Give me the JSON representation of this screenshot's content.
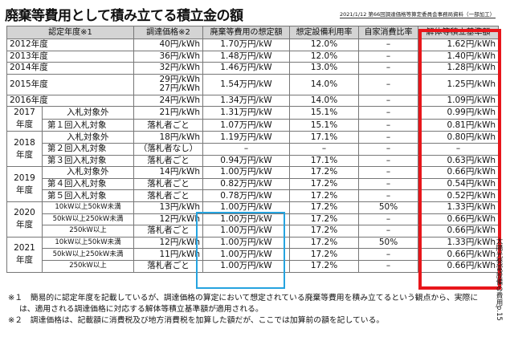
{
  "title": "廃棄等費用として積み立てる積立金の額",
  "source": "2021/1/12 第66回調達価格等算定委員会事務局資料（一部加工）",
  "headers": [
    "認定年度※1",
    "調達価格※2",
    "廃棄等費用の想定額",
    "想定設備利用率",
    "自家消費比率",
    "解体等積立基準額"
  ],
  "years": {
    "y2017": "2017年度",
    "y2018": "2018年度",
    "y2019": "2019年度",
    "y2020": "2020年度",
    "y2021": "2021年度"
  },
  "rows": [
    {
      "label": "2012年度",
      "price": "40円/kWh",
      "cost": "1.70万円/kW",
      "rate": "12.0%",
      "self": "–",
      "std": "1.62円/kWh"
    },
    {
      "label": "2013年度",
      "price": "36円/kWh",
      "cost": "1.48万円/kW",
      "rate": "12.0%",
      "self": "–",
      "std": "1.40円/kWh"
    },
    {
      "label": "2014年度",
      "price": "32円/kWh",
      "cost": "1.46万円/kW",
      "rate": "13.0%",
      "self": "–",
      "std": "1.28円/kWh"
    },
    {
      "label": "2015年度",
      "price": "29円/kWh",
      "price2": "27円/kWh",
      "cost": "1.54万円/kW",
      "rate": "14.0%",
      "self": "–",
      "std": "1.25円/kWh"
    },
    {
      "label": "2016年度",
      "price": "24円/kWh",
      "cost": "1.34万円/kW",
      "rate": "14.0%",
      "self": "–",
      "std": "1.09円/kWh"
    },
    {
      "label": "入札対象外",
      "price": "21円/kWh",
      "cost": "1.31万円/kW",
      "rate": "15.1%",
      "self": "–",
      "std": "0.99円/kWh"
    },
    {
      "label": "第１回入札対象",
      "price": "落札者ごと",
      "cost": "1.07万円/kW",
      "rate": "15.1%",
      "self": "–",
      "std": "0.81円/kWh"
    },
    {
      "label": "入札対象外",
      "price": "18円/kWh",
      "cost": "1.19万円/kW",
      "rate": "17.1%",
      "self": "–",
      "std": "0.80円/kWh"
    },
    {
      "label": "第２回入札対象",
      "price": "（落札者なし）",
      "cost": "–",
      "rate": "–",
      "self": "–",
      "std": "–"
    },
    {
      "label": "第３回入札対象",
      "price": "落札者ごと",
      "cost": "0.94万円/kW",
      "rate": "17.1%",
      "self": "–",
      "std": "0.63円/kWh"
    },
    {
      "label": "入札対象外",
      "price": "14円/kWh",
      "cost": "1.00万円/kW",
      "rate": "17.2%",
      "self": "–",
      "std": "0.66円/kWh"
    },
    {
      "label": "第４回入札対象",
      "price": "落札者ごと",
      "cost": "0.82万円/kW",
      "rate": "17.2%",
      "self": "–",
      "std": "0.54円/kWh"
    },
    {
      "label": "第５回入札対象",
      "price": "落札者ごと",
      "cost": "0.78万円/kW",
      "rate": "17.2%",
      "self": "–",
      "std": "0.52円/kWh"
    },
    {
      "label": "10kW以上50kW未満",
      "price": "13円/kWh",
      "cost": "1.00万円/kW",
      "rate": "17.2%",
      "self": "50%",
      "std": "1.33円/kWh"
    },
    {
      "label": "50kW以上250kW未満",
      "price": "12円/kWh",
      "cost": "1.00万円/kW",
      "rate": "17.2%",
      "self": "–",
      "std": "0.66円/kWh"
    },
    {
      "label": "250kW以上",
      "price": "落札者ごと",
      "cost": "1.00万円/kW",
      "rate": "17.2%",
      "self": "–",
      "std": "0.66円/kWh"
    },
    {
      "label": "10kW以上50kW未満",
      "price": "12円/kWh",
      "cost": "1.00万円/kW",
      "rate": "17.2%",
      "self": "50%",
      "std": "1.33円/kWh"
    },
    {
      "label": "50kW以上250kW未満",
      "price": "11円/kWh",
      "cost": "1.00万円/kW",
      "rate": "17.2%",
      "self": "–",
      "std": "0.66円/kWh"
    },
    {
      "label": "250kW以上",
      "price": "落札者ごと",
      "cost": "1.00万円/kW",
      "rate": "17.2%",
      "self": "–",
      "std": "0.66円/kWh"
    }
  ],
  "footnotes": [
    "※１　簡易的に認定年度を記載しているが、調達価格の算定において想定されている廃棄等費用を積み立てるという観点から、実際に",
    "は、適用される調達価格に対応する解体等積立基準額が適用される。",
    "※２　調達価格は、記載額に消費税及び地方消費税を加算した額だが、ここでは加算前の額を記している。"
  ],
  "side_note": "太陽光発電設備の費用p.15",
  "colors": {
    "header_bg": "#d4d4d4",
    "red_box": "#e8161b",
    "blue_box": "#25a3df"
  }
}
